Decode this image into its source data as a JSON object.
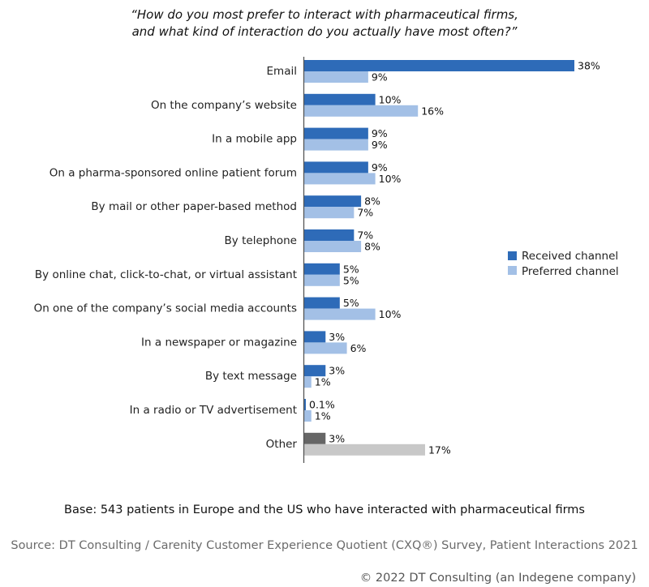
{
  "title_line1": "“How do you most prefer to interact with pharmaceutical firms,",
  "title_line2": "and what kind of interaction do you actually have most often?”",
  "base_note": "Base: 543 patients in Europe and the US who have interacted with pharmaceutical firms",
  "source_note": "Source: DT Consulting / Carenity Customer Experience Quotient (CXQ®) Survey, Patient Interactions 2021",
  "copyright": "© 2022 DT Consulting (an Indegene company)",
  "chart_data": {
    "type": "bar",
    "orientation": "horizontal",
    "categories": [
      "Email",
      "On the company’s website",
      "In a mobile app",
      "On a pharma-sponsored online patient forum",
      "By mail or other paper-based method",
      "By telephone",
      "By online chat, click-to-chat, or virtual assistant",
      "On one of the company’s social media accounts",
      "In a newspaper or magazine",
      "By text message",
      "In a radio or TV advertisement",
      "Other"
    ],
    "series": [
      {
        "name": "Received channel",
        "color": "#2e6bb8",
        "color_other": "#666666",
        "values": [
          38,
          10,
          9,
          9,
          8,
          7,
          5,
          5,
          3,
          3,
          0.1,
          3
        ],
        "labels": [
          "38%",
          "10%",
          "9%",
          "9%",
          "8%",
          "7%",
          "5%",
          "5%",
          "3%",
          "3%",
          "0.1%",
          "3%"
        ]
      },
      {
        "name": "Preferred channel",
        "color": "#a3c0e6",
        "color_other": "#c8c8c8",
        "values": [
          9,
          16,
          9,
          10,
          7,
          8,
          5,
          10,
          6,
          1,
          1,
          17
        ],
        "labels": [
          "9%",
          "16%",
          "9%",
          "10%",
          "7%",
          "8%",
          "5%",
          "10%",
          "6%",
          "1%",
          "1%",
          "17%"
        ]
      }
    ],
    "xlim": [
      0,
      38
    ],
    "grid": false,
    "legend_position": "right"
  }
}
